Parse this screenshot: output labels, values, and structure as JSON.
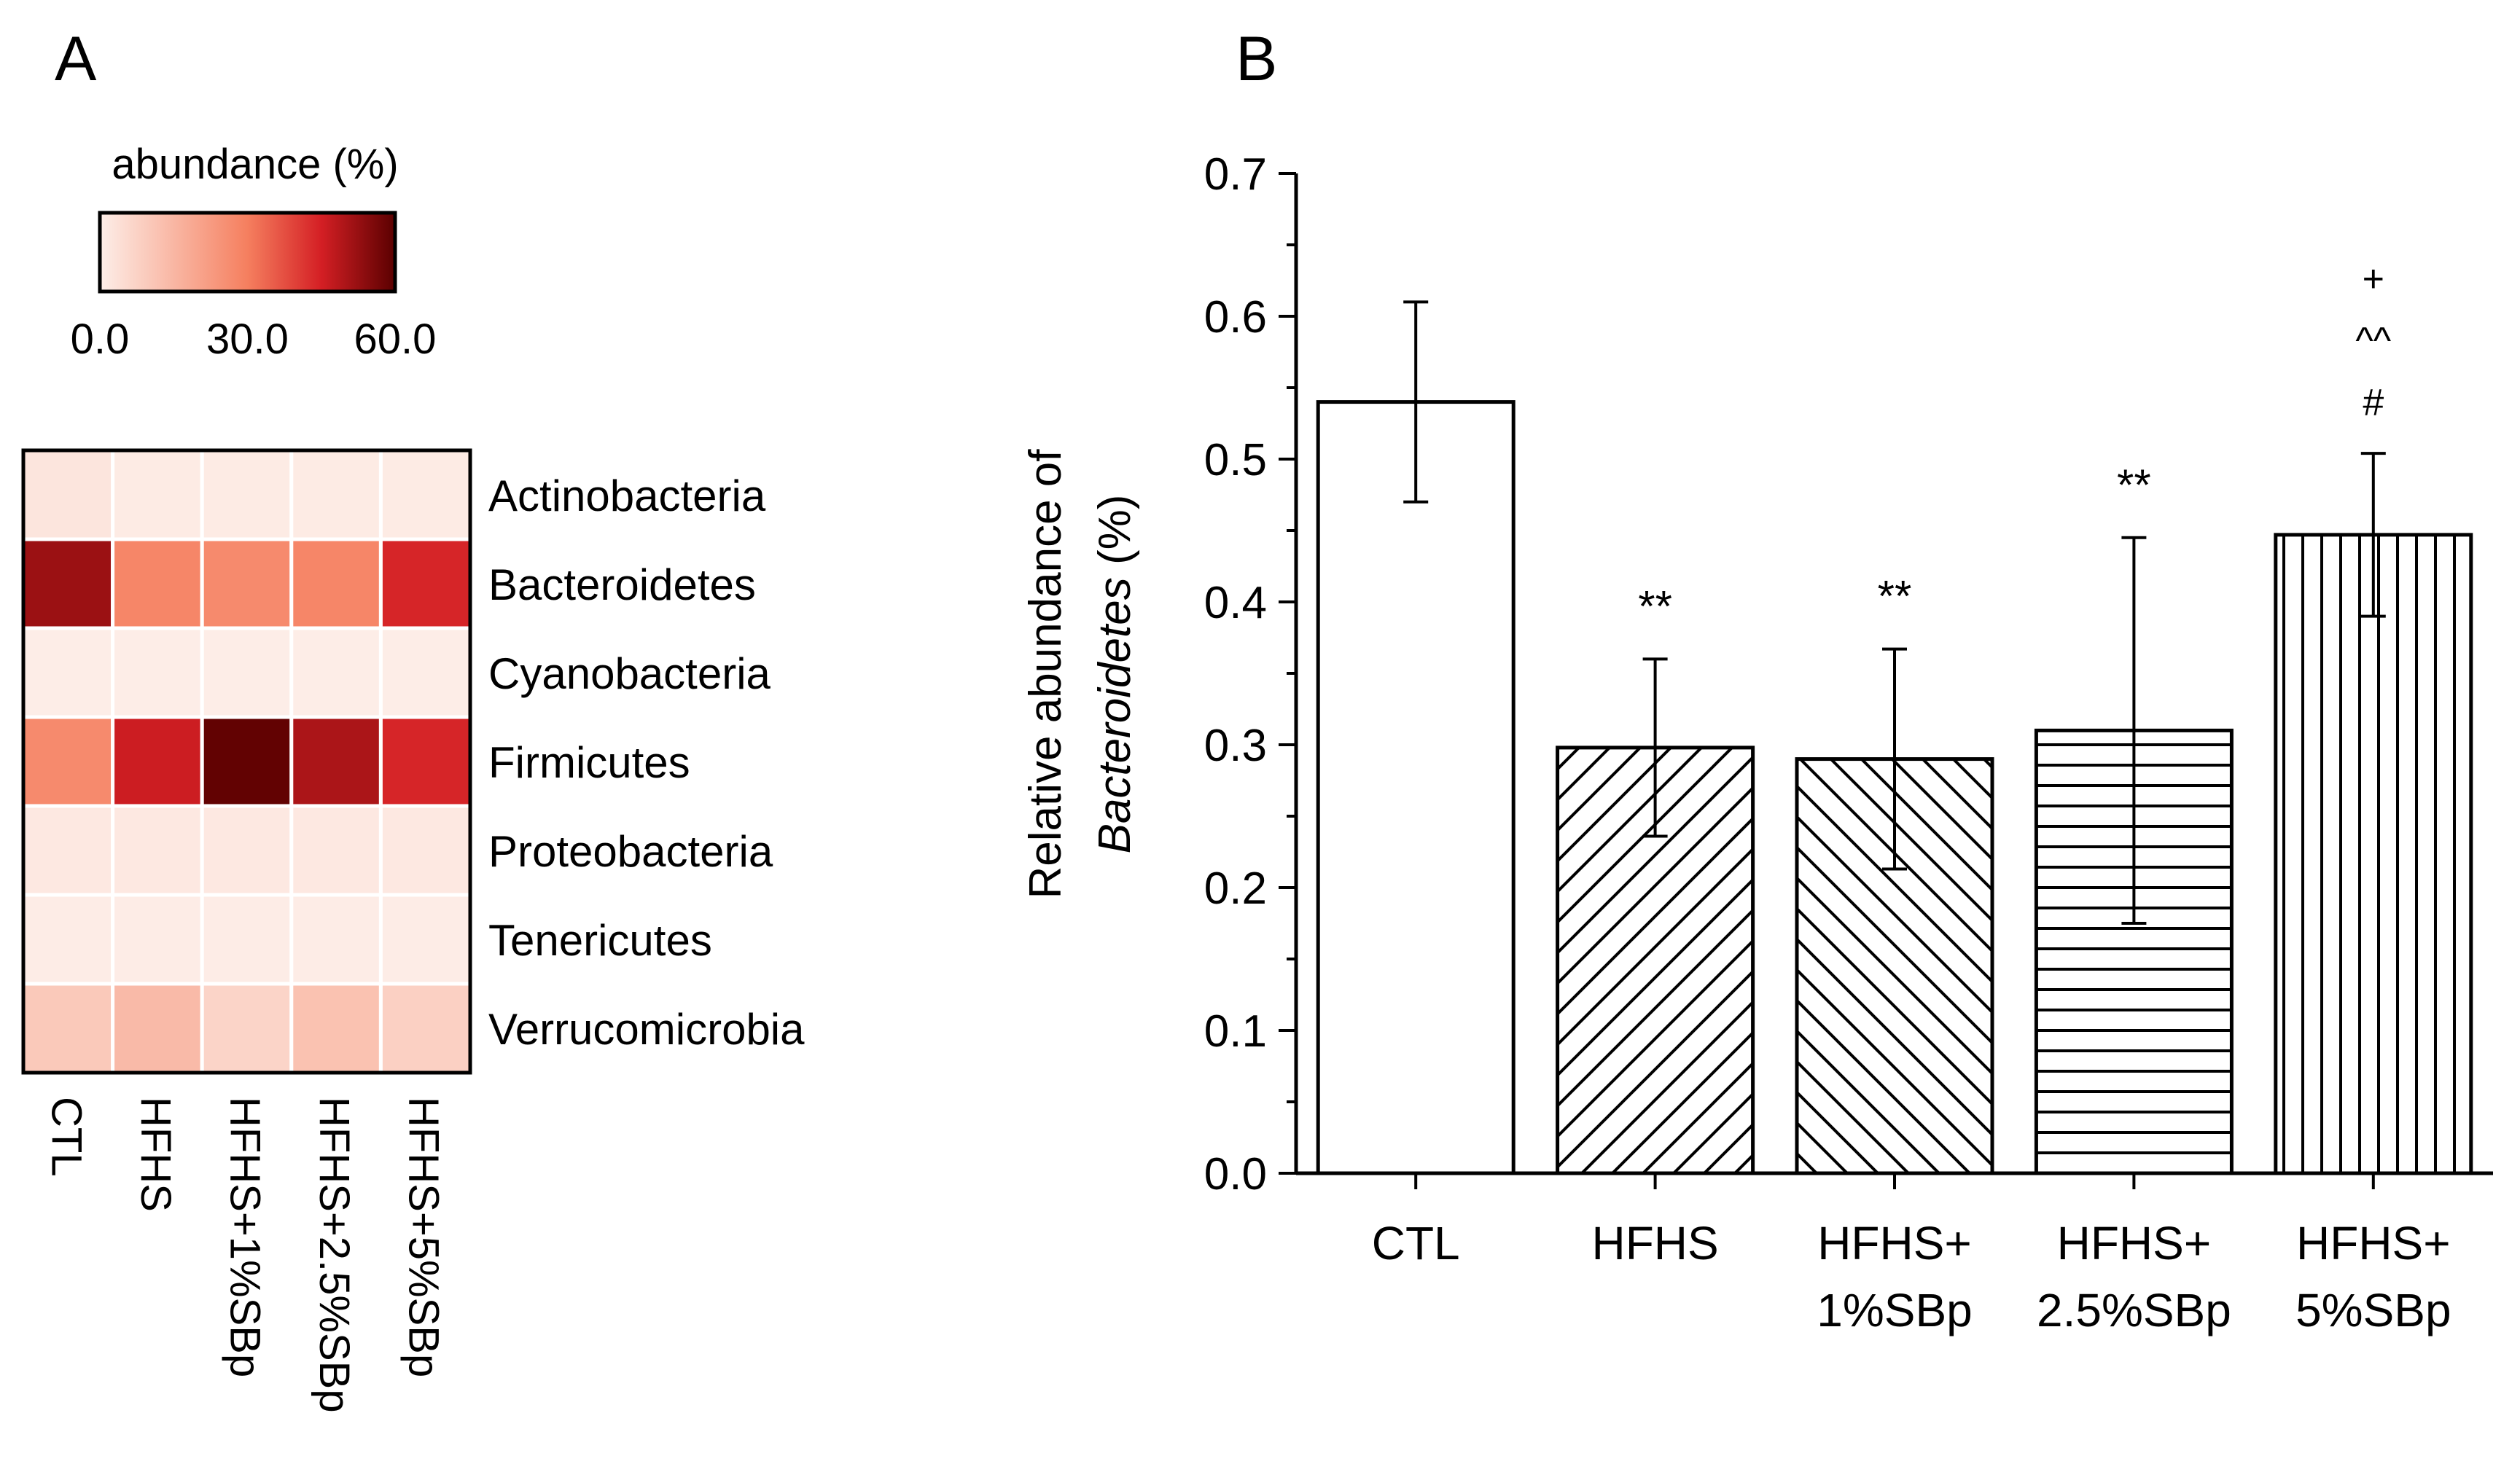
{
  "chart_data": [
    {
      "panel_label": "A",
      "type": "heatmap",
      "colorbar": {
        "title": "abundance (%)",
        "min": 0,
        "max": 60,
        "tick_labels": [
          "0.0",
          "30.0",
          "60.0"
        ],
        "colors": [
          "#fdeee8",
          "#f57f5f",
          "#d41f24",
          "#5a0000"
        ]
      },
      "rows": [
        "Actinobacteria",
        "Bacteroidetes",
        "Cyanobacteria",
        "Firmicutes",
        "Proteobacteria",
        "Tenericutes",
        "Verrucomicrobia"
      ],
      "columns": [
        "CTL",
        "HFHS",
        "HFHS+1%SBp",
        "HFHS+2.5%SBp",
        "HFHS+5%SBp"
      ],
      "values": [
        [
          2.5,
          0.8,
          0.8,
          0.8,
          0.8
        ],
        [
          52,
          28,
          27,
          28,
          44
        ],
        [
          0.2,
          0.2,
          0.2,
          0.2,
          0.2
        ],
        [
          27,
          46,
          59,
          50,
          44
        ],
        [
          1.5,
          1.5,
          1.5,
          1.5,
          1.5
        ],
        [
          0.5,
          0.5,
          0.5,
          0.5,
          0.5
        ],
        [
          10,
          14,
          7,
          12,
          8
        ]
      ]
    },
    {
      "panel_label": "B",
      "type": "bar",
      "ylabel_line1": "Relative abundance of",
      "ylabel_line2_italic": "Bacteroidetes",
      "ylabel_line2_suffix": " (%)",
      "ylim": [
        0,
        0.7
      ],
      "ytick_labels": [
        "0.0",
        "0.1",
        "0.2",
        "0.3",
        "0.4",
        "0.5",
        "0.6",
        "0.7"
      ],
      "categories": [
        {
          "line1": "CTL",
          "line2": ""
        },
        {
          "line1": "HFHS",
          "line2": ""
        },
        {
          "line1": "HFHS+",
          "line2": "1%SBp"
        },
        {
          "line1": "HFHS+",
          "line2": "2.5%SBp"
        },
        {
          "line1": "HFHS+",
          "line2": "5%SBp"
        }
      ],
      "values": [
        0.54,
        0.298,
        0.29,
        0.31,
        0.447
      ],
      "errors": [
        0.07,
        0.062,
        0.077,
        0.135,
        0.057
      ],
      "patterns": [
        "none",
        "diag-up",
        "diag-down",
        "horizontal",
        "vertical"
      ],
      "significance": [
        [],
        [
          "**"
        ],
        [
          "**"
        ],
        [
          "**"
        ],
        [
          "#",
          "^^",
          "+"
        ]
      ]
    }
  ]
}
